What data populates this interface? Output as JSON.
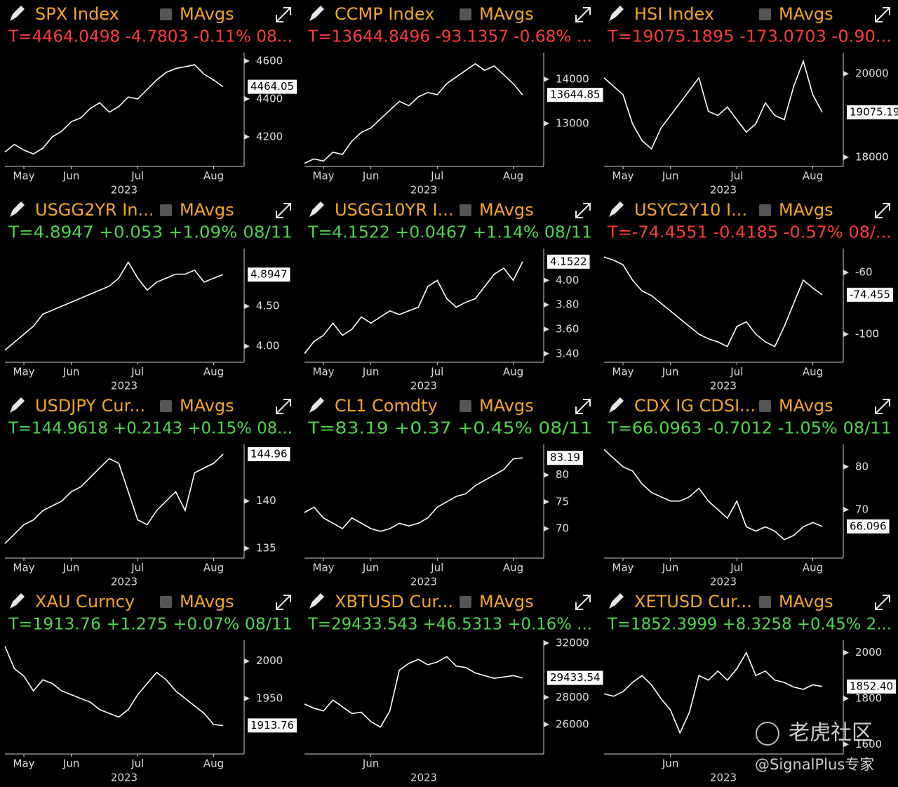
{
  "chart_data": [
    {
      "type": "line",
      "title": "SPX Index",
      "legend_label": "MAvgs",
      "subtitle": "T=4464.0498 -4.7803 -0.11% 08...",
      "subtitle_color": "#ff3b3b",
      "x_label": "2023",
      "categories": [
        null,
        null,
        "May",
        null,
        null,
        null,
        null,
        "Jun",
        null,
        null,
        null,
        null,
        null,
        null,
        "Jul",
        null,
        null,
        null,
        null,
        null,
        null,
        null,
        "Aug",
        null
      ],
      "values": [
        4120,
        4160,
        4130,
        4110,
        4140,
        4200,
        4230,
        4280,
        4300,
        4350,
        4380,
        4330,
        4360,
        4410,
        4400,
        4450,
        4500,
        4540,
        4560,
        4570,
        4580,
        4530,
        4500,
        4464.05
      ],
      "last_label": "4464.05",
      "ylim": [
        4044,
        4644
      ],
      "yticks": [
        4200,
        4400,
        4600
      ],
      "color": "#ffffff"
    },
    {
      "type": "line",
      "title": "CCMP Index",
      "legend_label": "MAvgs",
      "subtitle": "T=13644.8496 -93.1357 -0.68% ...",
      "subtitle_color": "#ff3b3b",
      "x_label": "2023",
      "categories": [
        null,
        null,
        "May",
        null,
        null,
        null,
        null,
        "Jun",
        null,
        null,
        null,
        null,
        null,
        null,
        "Jul",
        null,
        null,
        null,
        null,
        null,
        null,
        null,
        "Aug",
        null
      ],
      "values": [
        12100,
        12200,
        12150,
        12350,
        12300,
        12600,
        12800,
        12900,
        13100,
        13300,
        13500,
        13400,
        13600,
        13700,
        13650,
        13900,
        14050,
        14200,
        14350,
        14200,
        14300,
        14100,
        13900,
        13644.85
      ],
      "last_label": "13644.85",
      "ylim": [
        12030,
        14600
      ],
      "yticks": [
        13000,
        14000
      ],
      "color": "#ffffff"
    },
    {
      "type": "line",
      "title": "HSI Index",
      "legend_label": "MAvgs",
      "subtitle": "T=19075.1895 -173.0703 -0.90...",
      "subtitle_color": "#ff3b3b",
      "x_label": "2023",
      "categories": [
        null,
        null,
        "May",
        null,
        null,
        null,
        null,
        "Jun",
        null,
        null,
        null,
        null,
        null,
        null,
        "Jul",
        null,
        null,
        null,
        null,
        null,
        null,
        null,
        "Aug",
        null
      ],
      "values": [
        19900,
        19700,
        19500,
        18800,
        18400,
        18200,
        18700,
        19000,
        19300,
        19600,
        19900,
        19100,
        19000,
        19200,
        18900,
        18600,
        18800,
        19300,
        19000,
        18900,
        19700,
        20300,
        19500,
        19075.19
      ],
      "last_label": "19075.19",
      "ylim": [
        17782,
        20504
      ],
      "yticks": [
        18000,
        20000
      ],
      "color": "#ffffff"
    },
    {
      "type": "line",
      "title": "USGG2YR In...",
      "legend_label": "MAvgs",
      "subtitle": "T=4.8947 +0.053 +1.09% 08/11",
      "subtitle_color": "#4cd64c",
      "x_label": "2023",
      "categories": [
        null,
        null,
        "May",
        null,
        null,
        null,
        null,
        "Jun",
        null,
        null,
        null,
        null,
        null,
        null,
        "Jul",
        null,
        null,
        null,
        null,
        null,
        null,
        null,
        "Aug",
        null
      ],
      "values": [
        3.95,
        4.05,
        4.15,
        4.25,
        4.4,
        4.45,
        4.5,
        4.55,
        4.6,
        4.65,
        4.7,
        4.75,
        4.85,
        5.05,
        4.85,
        4.7,
        4.8,
        4.85,
        4.9,
        4.9,
        4.95,
        4.8,
        4.85,
        4.8947
      ],
      "last_label": "4.8947",
      "ylim": [
        3.8,
        5.22
      ],
      "yticks": [
        {
          "value": 4,
          "label": "4.00"
        },
        {
          "value": 4.5,
          "label": "4.50"
        }
      ],
      "color": "#ffffff"
    },
    {
      "type": "line",
      "title": "USGG10YR I...",
      "legend_label": "MAvgs",
      "subtitle": "T=4.1522 +0.0467 +1.14% 08/11",
      "subtitle_color": "#4cd64c",
      "x_label": "2023",
      "categories": [
        null,
        null,
        "May",
        null,
        null,
        null,
        null,
        "Jun",
        null,
        null,
        null,
        null,
        null,
        null,
        "Jul",
        null,
        null,
        null,
        null,
        null,
        null,
        null,
        "Aug",
        null
      ],
      "values": [
        3.4,
        3.5,
        3.55,
        3.65,
        3.55,
        3.6,
        3.7,
        3.65,
        3.7,
        3.75,
        3.72,
        3.75,
        3.78,
        3.95,
        4.0,
        3.85,
        3.78,
        3.82,
        3.85,
        3.95,
        4.05,
        4.1,
        4.0,
        4.1522
      ],
      "last_label": "4.1522",
      "ylim": [
        3.33,
        4.26
      ],
      "yticks": [
        {
          "value": 3.4,
          "label": "3.40"
        },
        {
          "value": 3.6,
          "label": "3.60"
        },
        {
          "value": 3.8,
          "label": "3.80"
        },
        {
          "value": 4,
          "label": "4.00"
        }
      ],
      "color": "#ffffff"
    },
    {
      "type": "line",
      "title": "USYC2Y10 I...",
      "legend_label": "MAvgs",
      "subtitle": "T=-74.4551 -0.4185 -0.57% 08/...",
      "subtitle_color": "#ff3b3b",
      "x_label": "2023",
      "categories": [
        null,
        null,
        "May",
        null,
        null,
        null,
        null,
        "Jun",
        null,
        null,
        null,
        null,
        null,
        null,
        "Jul",
        null,
        null,
        null,
        null,
        null,
        null,
        null,
        "Aug",
        null
      ],
      "values": [
        -50,
        -52,
        -55,
        -65,
        -72,
        -75,
        -80,
        -85,
        -90,
        -95,
        -100,
        -103,
        -105,
        -108,
        -95,
        -92,
        -100,
        -105,
        -108,
        -95,
        -80,
        -65,
        -70,
        -74.455
      ],
      "last_label": "-74.455",
      "ylim": [
        -118.2,
        -44.5
      ],
      "yticks": [
        -100,
        -60
      ],
      "color": "#ffffff"
    },
    {
      "type": "line",
      "title": "USDJPY Cur...",
      "legend_label": "MAvgs",
      "subtitle": "T=144.9618 +0.2143 +0.15% 08...",
      "subtitle_color": "#4cd64c",
      "x_label": "2023",
      "categories": [
        null,
        null,
        "May",
        null,
        null,
        null,
        null,
        "Jun",
        null,
        null,
        null,
        null,
        null,
        null,
        "Jul",
        null,
        null,
        null,
        null,
        null,
        null,
        null,
        "Aug",
        null
      ],
      "values": [
        135.5,
        136.5,
        137.5,
        138,
        139,
        139.5,
        140,
        141,
        141.5,
        142.5,
        143.5,
        144.5,
        144,
        141,
        138,
        137.5,
        139,
        140,
        141,
        139,
        143,
        143.5,
        144,
        144.96
      ],
      "last_label": "144.96",
      "ylim": [
        133.96,
        146
      ],
      "yticks": [
        135,
        140
      ],
      "color": "#ffffff"
    },
    {
      "type": "line",
      "title": "CL1 Comdty",
      "legend_label": "MAvgs",
      "subtitle": "T=83.19 +0.37 +0.45% 08/11",
      "subtitle_color": "#4cd64c",
      "x_label": "2023",
      "categories": [
        null,
        null,
        "May",
        null,
        null,
        null,
        null,
        "Jun",
        null,
        null,
        null,
        null,
        null,
        null,
        "Jul",
        null,
        null,
        null,
        null,
        null,
        null,
        null,
        "Aug",
        null
      ],
      "values": [
        73,
        74,
        72,
        71,
        70,
        72,
        71,
        70,
        69.5,
        70,
        71,
        70.5,
        71,
        72,
        74,
        75,
        76,
        76.5,
        78,
        79,
        80,
        81,
        83,
        83.19
      ],
      "last_label": "83.19",
      "ylim": [
        64.5,
        85.7
      ],
      "yticks": [
        70,
        75,
        80
      ],
      "color": "#ffffff"
    },
    {
      "type": "line",
      "title": "CDX IG CDSI...",
      "legend_label": "MAvgs",
      "subtitle": "T=66.0963 -0.7012 -1.05% 08/11",
      "subtitle_color": "#4cd64c",
      "x_label": "2023",
      "categories": [
        null,
        null,
        "May",
        null,
        null,
        null,
        null,
        "Jun",
        null,
        null,
        null,
        null,
        null,
        null,
        "Jul",
        null,
        null,
        null,
        null,
        null,
        null,
        null,
        "Aug",
        null
      ],
      "values": [
        84,
        82,
        80,
        79,
        76,
        74,
        73,
        72,
        72,
        73,
        75,
        72,
        70,
        68,
        72,
        66,
        65,
        66,
        65,
        63,
        64,
        66,
        67,
        66.096
      ],
      "last_label": "66.096",
      "ylim": [
        58.7,
        85.2
      ],
      "yticks": [
        70,
        80
      ],
      "color": "#ffffff"
    },
    {
      "type": "line",
      "title": "XAU Curncy",
      "legend_label": "MAvgs",
      "subtitle": "T=1913.76 +1.275 +0.07% 08/11",
      "subtitle_color": "#4cd64c",
      "x_label": "2023",
      "categories": [
        null,
        null,
        "May",
        null,
        null,
        null,
        null,
        "Jun",
        null,
        null,
        null,
        null,
        null,
        null,
        "Jul",
        null,
        null,
        null,
        null,
        null,
        null,
        null,
        "Aug",
        null
      ],
      "values": [
        2020,
        1990,
        1980,
        1960,
        1975,
        1970,
        1960,
        1955,
        1950,
        1945,
        1935,
        1930,
        1925,
        1935,
        1955,
        1970,
        1985,
        1975,
        1960,
        1950,
        1940,
        1930,
        1915,
        1913.76
      ],
      "last_label": "1913.76",
      "ylim": [
        1875.5,
        2028
      ],
      "yticks": [
        1950,
        2000
      ],
      "color": "#ffffff"
    },
    {
      "type": "line",
      "title": "XBTUSD Cur...",
      "legend_label": "MAvgs",
      "subtitle": "T=29433.543 +46.5313 +0.16% ...",
      "subtitle_color": "#4cd64c",
      "x_label": "2023",
      "categories": [
        null,
        null,
        null,
        null,
        null,
        null,
        null,
        "Jun",
        null,
        null,
        null,
        null,
        null,
        null,
        null,
        null,
        null,
        null,
        null,
        null,
        null,
        null,
        null,
        null
      ],
      "values": [
        27500,
        27200,
        27000,
        27800,
        27300,
        26800,
        26900,
        26200,
        25800,
        27000,
        30000,
        30500,
        30800,
        30400,
        30600,
        31000,
        30300,
        30200,
        29800,
        29600,
        29400,
        29500,
        29600,
        29433.54
      ],
      "last_label": "29433.54",
      "ylim": [
        23818,
        32208
      ],
      "yticks": [
        26000,
        28000,
        32000
      ],
      "color": "#ffffff"
    },
    {
      "type": "line",
      "title": "XETUSD Cur...",
      "legend_label": "MAvgs",
      "subtitle": "T=1852.3999 +8.3258 +0.45% 2...",
      "subtitle_color": "#4cd64c",
      "x_label": "2023",
      "categories": [
        null,
        null,
        null,
        null,
        null,
        null,
        null,
        "Jun",
        null,
        null,
        null,
        null,
        null,
        null,
        null,
        null,
        null,
        null,
        null,
        null,
        null,
        null,
        null,
        null
      ],
      "values": [
        1820,
        1810,
        1830,
        1870,
        1900,
        1860,
        1800,
        1750,
        1650,
        1740,
        1900,
        1880,
        1920,
        1880,
        1930,
        2000,
        1900,
        1920,
        1880,
        1870,
        1850,
        1840,
        1860,
        1852.4
      ],
      "last_label": "1852.40",
      "ylim": [
        1558,
        2054
      ],
      "yticks": [
        1600,
        1800,
        2000
      ],
      "color": "#ffffff"
    }
  ],
  "watermark": {
    "brand": "老虎社区",
    "author": "@SignalPlus专家"
  }
}
